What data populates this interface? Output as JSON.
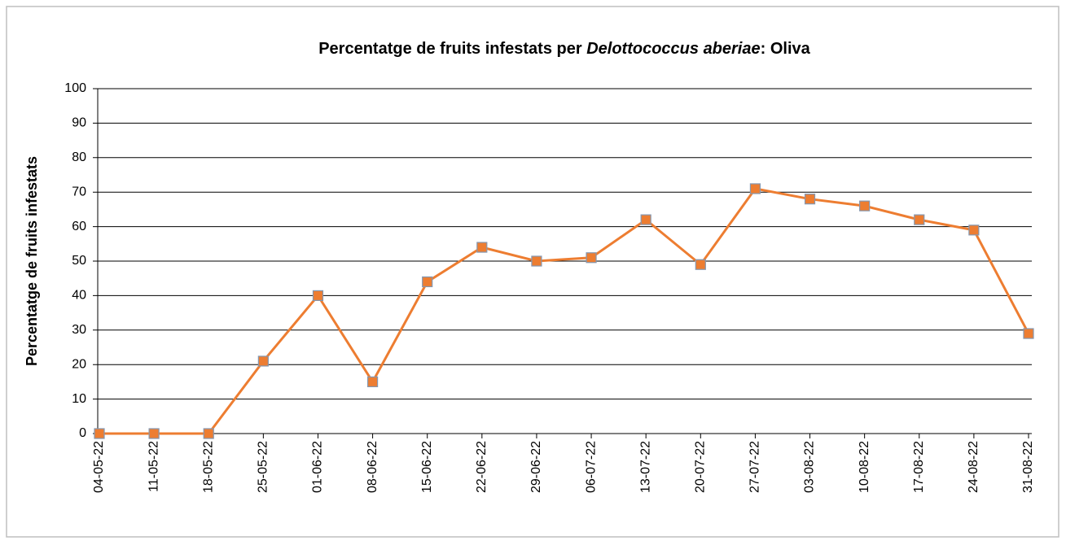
{
  "chart_data": {
    "type": "line",
    "title": [
      "Percentatge de fruits infestats per ",
      "Delottococcus aberiae",
      ": Oliva"
    ],
    "y_label": "Percentatge de fruits infestats",
    "categories": [
      "04-05-22",
      "11-05-22",
      "18-05-22",
      "25-05-22",
      "01-06-22",
      "08-06-22",
      "15-06-22",
      "22-06-22",
      "29-06-22",
      "06-07-22",
      "13-07-22",
      "20-07-22",
      "27-07-22",
      "03-08-22",
      "10-08-22",
      "17-08-22",
      "24-08-22",
      "31-08-22"
    ],
    "series": [
      {
        "name": "Oliva",
        "color": "#ed7d31",
        "marker_edge": "#8497b0",
        "values": [
          0,
          0,
          0,
          21,
          40,
          15,
          44,
          54,
          50,
          51,
          62,
          49,
          71,
          68,
          66,
          62,
          59,
          29
        ]
      }
    ],
    "ylim": [
      0,
      100
    ],
    "yticks": [
      0,
      10,
      20,
      30,
      40,
      50,
      60,
      70,
      80,
      90,
      100
    ],
    "grid": true
  }
}
